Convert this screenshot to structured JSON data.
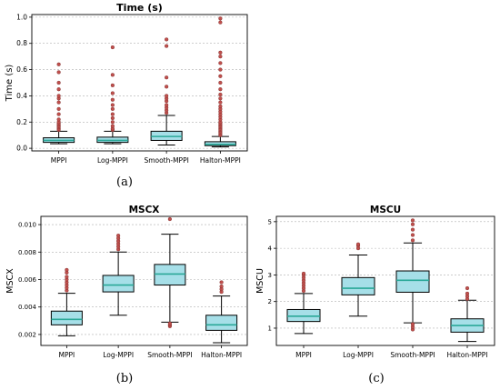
{
  "figure": {
    "captions": [
      "(a)",
      "(b)",
      "(c)"
    ]
  },
  "style": {
    "box_fill": "#a6dfe8",
    "box_edge": "#000000",
    "median_color": "#2aa898",
    "flier_color": "#c0504d",
    "grid_color": "#b0b0b0"
  },
  "chart_data": [
    {
      "id": "time",
      "type": "box",
      "title": "Time (s)",
      "ylabel": "Time (s)",
      "xlabel": "",
      "ylim": [
        -0.02,
        1.02
      ],
      "yticks": [
        0.0,
        0.2,
        0.4,
        0.6,
        0.8,
        1.0
      ],
      "ytick_labels": [
        "0.0",
        "0.2",
        "0.4",
        "0.6",
        "0.8",
        "1.0"
      ],
      "grid": "y-dashed",
      "categories": [
        "MPPI",
        "Log-MPPI",
        "Smooth-MPPI",
        "Halton-MPPI"
      ],
      "boxes": [
        {
          "whislo": 0.035,
          "q1": 0.045,
          "med": 0.06,
          "q3": 0.08,
          "whishi": 0.13,
          "fliers": [
            0.14,
            0.15,
            0.16,
            0.17,
            0.18,
            0.19,
            0.2,
            0.22,
            0.26,
            0.3,
            0.35,
            0.38,
            0.4,
            0.45,
            0.5,
            0.58,
            0.64
          ]
        },
        {
          "whislo": 0.035,
          "q1": 0.045,
          "med": 0.06,
          "q3": 0.085,
          "whishi": 0.13,
          "fliers": [
            0.14,
            0.15,
            0.17,
            0.2,
            0.23,
            0.26,
            0.3,
            0.33,
            0.37,
            0.42,
            0.48,
            0.56,
            0.77
          ]
        },
        {
          "whislo": 0.025,
          "q1": 0.06,
          "med": 0.09,
          "q3": 0.13,
          "whishi": 0.25,
          "fliers": [
            0.27,
            0.29,
            0.31,
            0.33,
            0.36,
            0.38,
            0.4,
            0.47,
            0.54,
            0.78,
            0.83
          ]
        },
        {
          "whislo": 0.01,
          "q1": 0.02,
          "med": 0.03,
          "q3": 0.05,
          "whishi": 0.09,
          "fliers": [
            0.1,
            0.11,
            0.12,
            0.13,
            0.14,
            0.15,
            0.16,
            0.17,
            0.18,
            0.19,
            0.2,
            0.22,
            0.24,
            0.26,
            0.28,
            0.3,
            0.32,
            0.35,
            0.38,
            0.41,
            0.45,
            0.5,
            0.55,
            0.6,
            0.65,
            0.7,
            0.73,
            0.96,
            0.99
          ]
        }
      ]
    },
    {
      "id": "mscx",
      "type": "box",
      "title": "MSCX",
      "ylabel": "MSCX",
      "xlabel": "",
      "ylim": [
        0.0012,
        0.0106
      ],
      "yticks": [
        0.002,
        0.004,
        0.006,
        0.008,
        0.01
      ],
      "ytick_labels": [
        "0.002",
        "0.004",
        "0.006",
        "0.008",
        "0.010"
      ],
      "grid": "y-dashed",
      "categories": [
        "MPPI",
        "Log-MPPI",
        "Smooth-MPPI",
        "Halton-MPPI"
      ],
      "boxes": [
        {
          "whislo": 0.0019,
          "q1": 0.0027,
          "med": 0.0031,
          "q3": 0.0037,
          "whishi": 0.005,
          "fliers": [
            0.0052,
            0.0054,
            0.0056,
            0.0058,
            0.006,
            0.0062,
            0.0065,
            0.0067
          ]
        },
        {
          "whislo": 0.0034,
          "q1": 0.0051,
          "med": 0.0056,
          "q3": 0.0063,
          "whishi": 0.008,
          "fliers": [
            0.0082,
            0.0084,
            0.0086,
            0.0088,
            0.009,
            0.0092
          ]
        },
        {
          "whislo": 0.0029,
          "q1": 0.0056,
          "med": 0.0064,
          "q3": 0.0071,
          "whishi": 0.0093,
          "fliers": [
            0.0026,
            0.0027,
            0.0028,
            0.0104
          ]
        },
        {
          "whislo": 0.0014,
          "q1": 0.0023,
          "med": 0.0027,
          "q3": 0.0034,
          "whishi": 0.0048,
          "fliers": [
            0.0051,
            0.0053,
            0.0055,
            0.0058
          ]
        }
      ]
    },
    {
      "id": "mscu",
      "type": "box",
      "title": "MSCU",
      "ylabel": "MSCU",
      "xlabel": "",
      "ylim": [
        0.35,
        5.2
      ],
      "yticks": [
        1,
        2,
        3,
        4,
        5
      ],
      "ytick_labels": [
        "1",
        "2",
        "3",
        "4",
        "5"
      ],
      "grid": "y-dashed",
      "categories": [
        "MPPI",
        "Log-MPPI",
        "Smooth-MPPI",
        "Halton-MPPI"
      ],
      "boxes": [
        {
          "whislo": 0.8,
          "q1": 1.25,
          "med": 1.45,
          "q3": 1.7,
          "whishi": 2.3,
          "fliers": [
            2.4,
            2.5,
            2.6,
            2.7,
            2.8,
            2.9,
            3.0,
            3.05
          ]
        },
        {
          "whislo": 1.45,
          "q1": 2.25,
          "med": 2.5,
          "q3": 2.9,
          "whishi": 3.75,
          "fliers": [
            4.0,
            4.1,
            4.15
          ]
        },
        {
          "whislo": 1.2,
          "q1": 2.35,
          "med": 2.8,
          "q3": 3.15,
          "whishi": 4.2,
          "fliers": [
            0.95,
            1.05,
            1.15,
            4.3,
            4.5,
            4.7,
            4.9,
            5.05
          ]
        },
        {
          "whislo": 0.5,
          "q1": 0.85,
          "med": 1.1,
          "q3": 1.35,
          "whishi": 2.05,
          "fliers": [
            2.1,
            2.2,
            2.3,
            2.5
          ]
        }
      ]
    }
  ]
}
